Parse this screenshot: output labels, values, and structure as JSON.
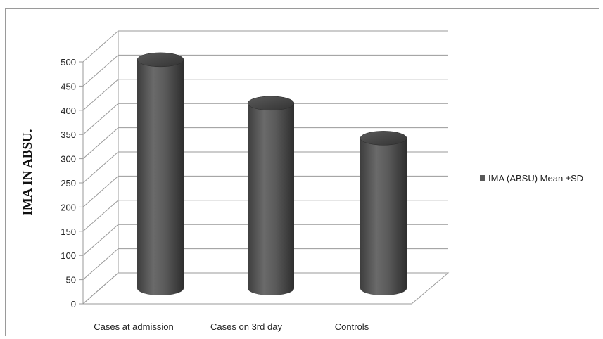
{
  "chart_data": {
    "type": "bar",
    "title": "",
    "xlabel": "",
    "ylabel": "IMA IN ABSU.",
    "categories": [
      "Cases at admission",
      "Cases on 3rd day",
      "Controls"
    ],
    "series": [
      {
        "name": "IMA (ABSU) Mean ±SD",
        "values": [
          490,
          400,
          328
        ]
      }
    ],
    "ylim": [
      0,
      500
    ],
    "yticks": [
      "0",
      "50",
      "100",
      "150",
      "200",
      "250",
      "300",
      "350",
      "400",
      "450",
      "500"
    ],
    "grid": true,
    "legend_position": "right",
    "style": "3d-cylinder",
    "colors": {
      "bar": "#595959",
      "bar_dark": "#3a3a3a",
      "bar_light": "#8a8a8a",
      "grid": "#9a9a9a"
    }
  }
}
